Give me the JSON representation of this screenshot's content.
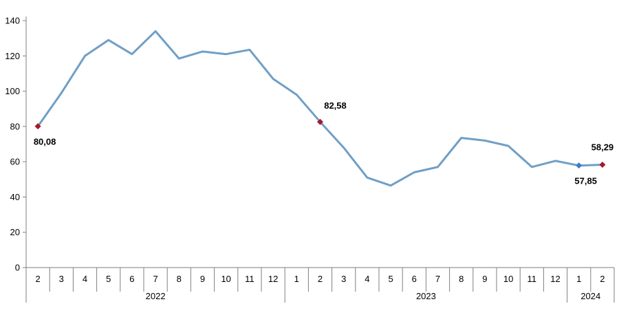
{
  "chart_data": {
    "type": "line",
    "title": "",
    "xlabel": "",
    "ylabel": "",
    "ylim": [
      0,
      140
    ],
    "yticks": [
      0,
      20,
      40,
      60,
      80,
      100,
      120,
      140
    ],
    "grid": false,
    "legend": "none",
    "months": [
      "2",
      "3",
      "4",
      "5",
      "6",
      "7",
      "8",
      "9",
      "10",
      "11",
      "12",
      "1",
      "2",
      "3",
      "4",
      "5",
      "6",
      "7",
      "8",
      "9",
      "10",
      "11",
      "12",
      "1",
      "2"
    ],
    "years": [
      {
        "label": "2022",
        "start": 0,
        "end": 10
      },
      {
        "label": "2023",
        "start": 11,
        "end": 22
      },
      {
        "label": "2024",
        "start": 23,
        "end": 24
      }
    ],
    "series": [
      {
        "values": [
          80.08,
          99,
          120,
          129,
          121,
          134,
          118.5,
          122.5,
          121,
          123.5,
          107,
          98,
          82.58,
          68,
          51,
          46.5,
          54,
          57,
          73.5,
          72,
          69,
          57,
          60.5,
          57.85,
          58.29
        ],
        "color": "#6f9fc6"
      }
    ],
    "markers": [
      {
        "index": 0,
        "label": "80,08",
        "color": "#a6192e",
        "label_pos": "below"
      },
      {
        "index": 12,
        "label": "82,58",
        "color": "#a6192e",
        "label_pos": "above-right"
      },
      {
        "index": 23,
        "label": "57,85",
        "color": "#3b7fc4",
        "label_pos": "below"
      },
      {
        "index": 24,
        "label": "58,29",
        "color": "#a6192e",
        "label_pos": "above"
      }
    ],
    "axis_color": "#7f7f7f"
  }
}
